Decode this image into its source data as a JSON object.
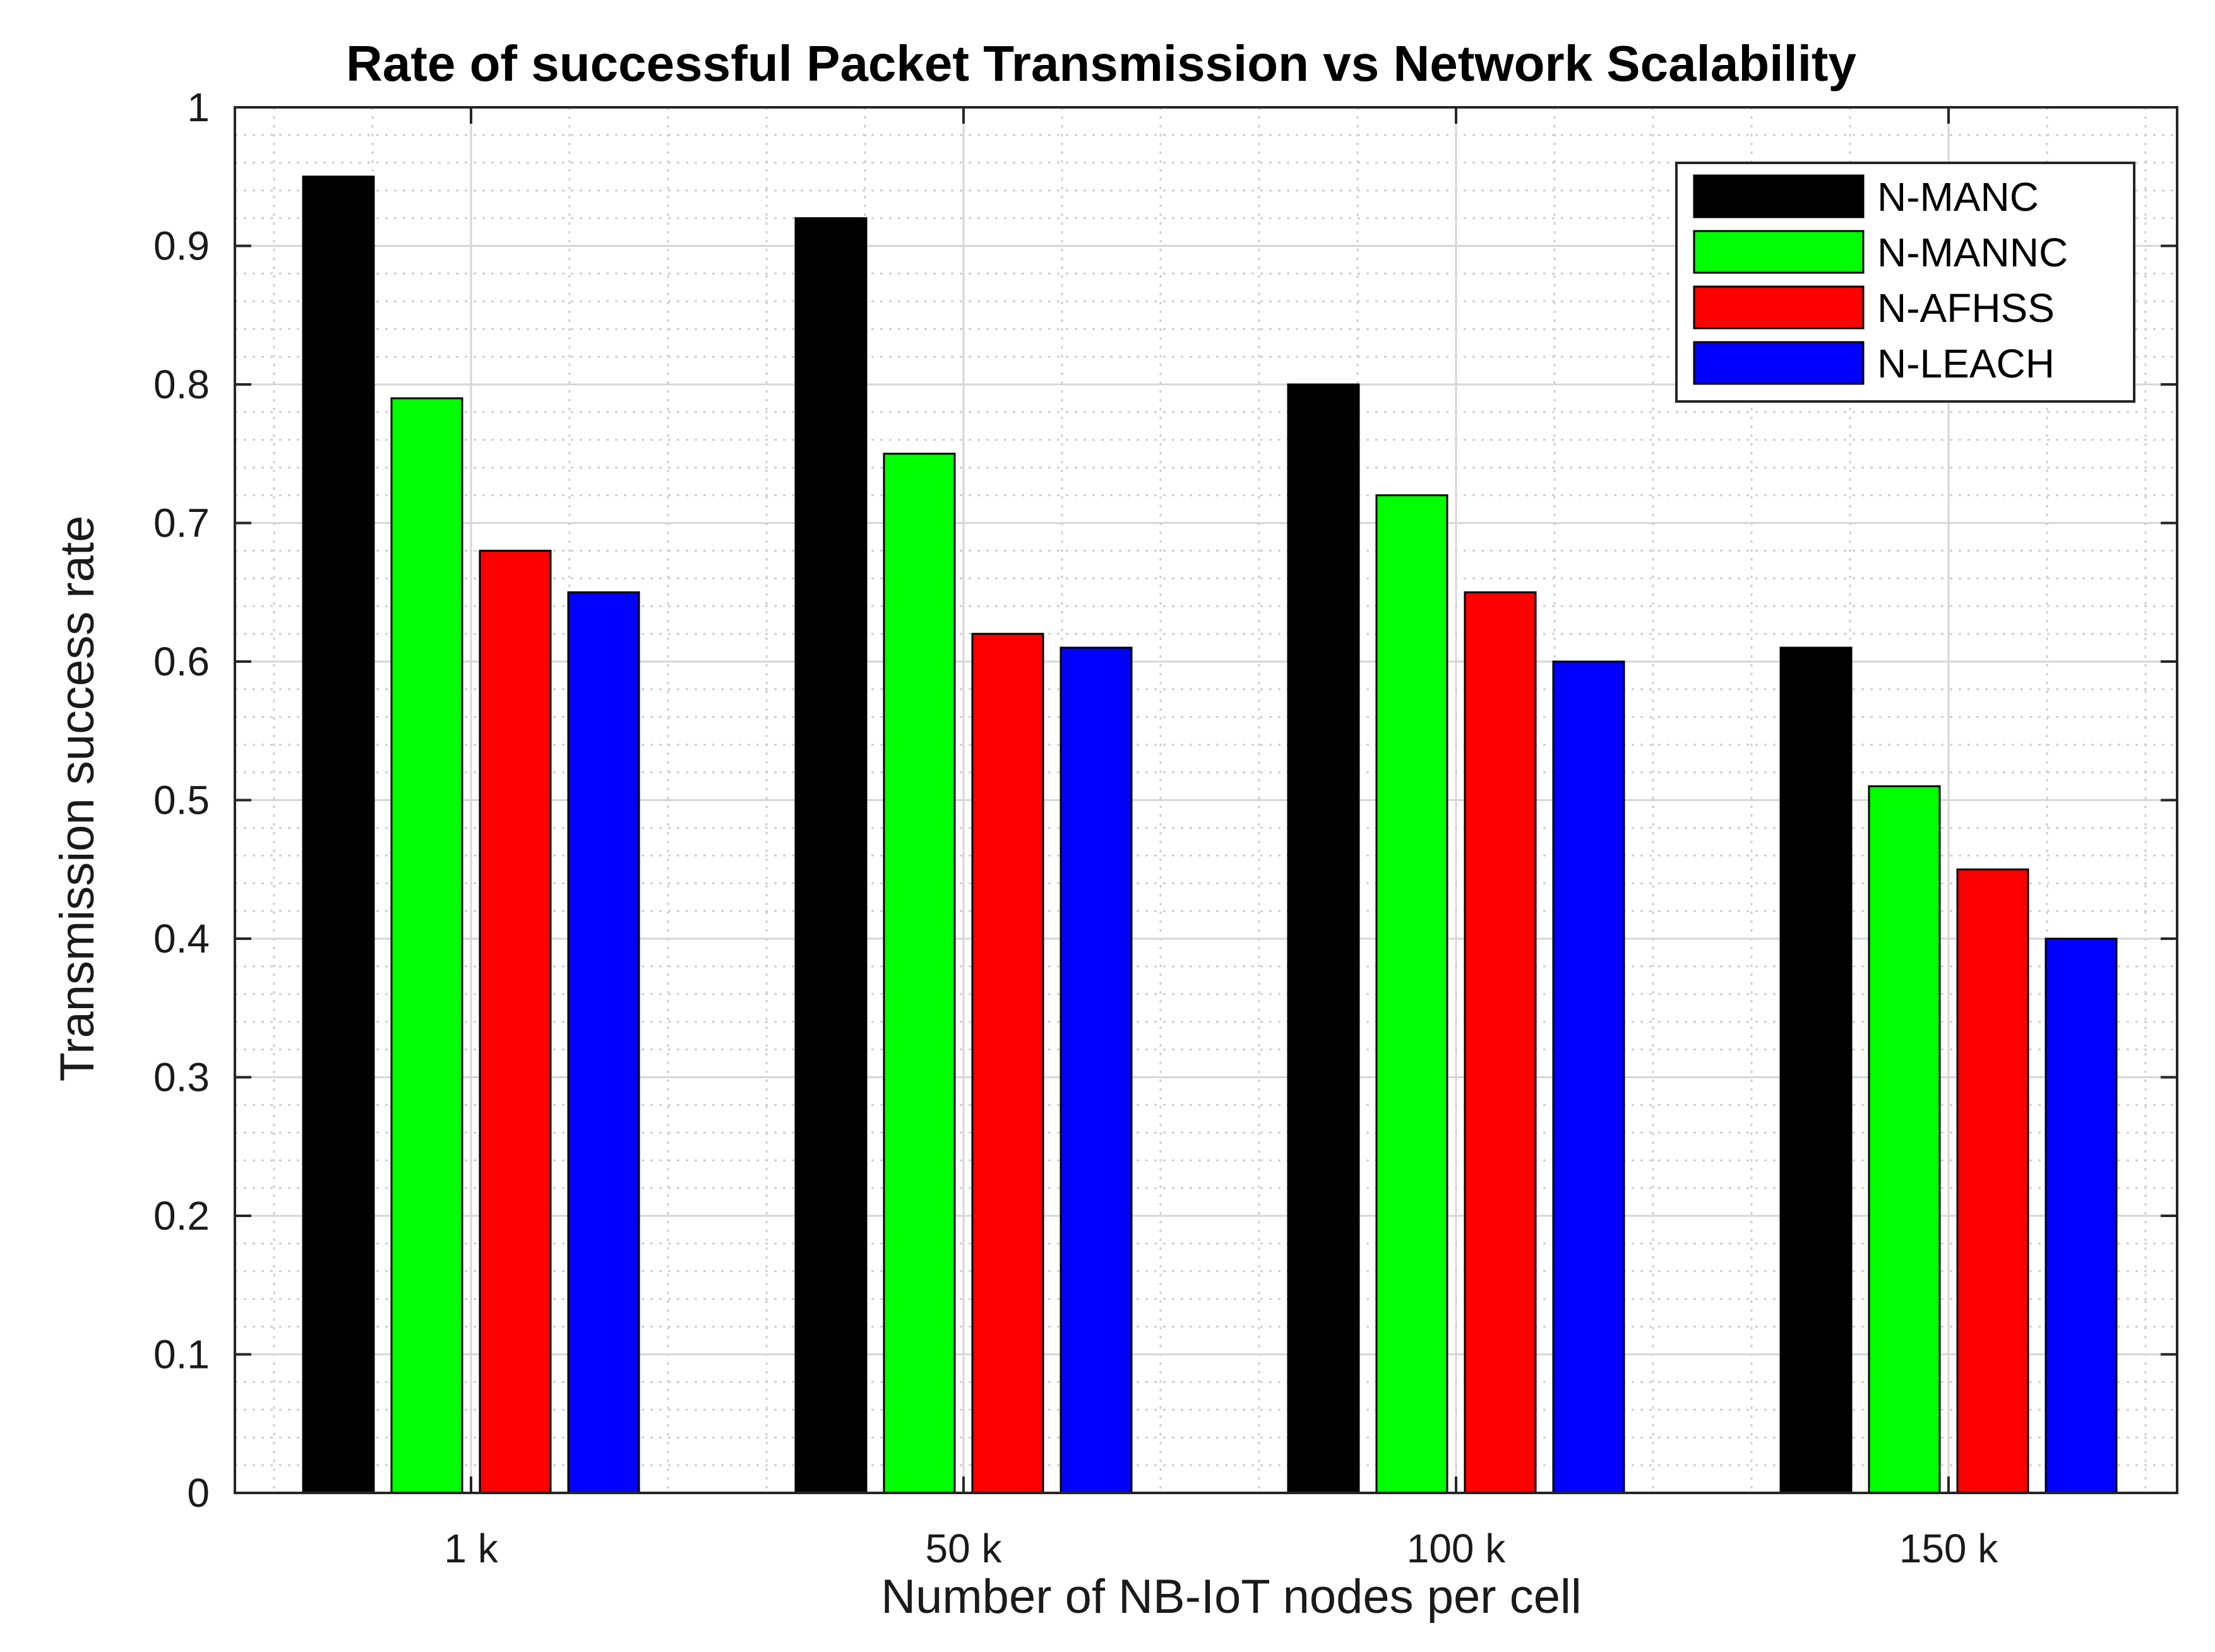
{
  "chart_data": {
    "type": "bar",
    "title": "Rate of successful Packet Transmission vs Network Scalability",
    "xlabel": "Number of NB-IoT nodes per cell",
    "ylabel": "Transmission success rate",
    "categories": [
      "1 k",
      "50 k",
      "100 k",
      "150 k"
    ],
    "ylim": [
      0,
      1
    ],
    "yticks": [
      0,
      0.1,
      0.2,
      0.3,
      0.4,
      0.5,
      0.6,
      0.7,
      0.8,
      0.9,
      1
    ],
    "ytick_labels": [
      "0",
      "0.1",
      "0.2",
      "0.3",
      "0.4",
      "0.5",
      "0.6",
      "0.7",
      "0.8",
      "0.9",
      "1"
    ],
    "grid": true,
    "minor_grid": true,
    "legend_position": "top-right",
    "series": [
      {
        "name": "N-MANC",
        "color": "#000000",
        "values": [
          0.95,
          0.92,
          0.8,
          0.61
        ]
      },
      {
        "name": "N-MANNC",
        "color": "#00ff00",
        "values": [
          0.79,
          0.75,
          0.72,
          0.51
        ]
      },
      {
        "name": "N-AFHSS",
        "color": "#ff0000",
        "values": [
          0.68,
          0.62,
          0.65,
          0.45
        ]
      },
      {
        "name": "N-LEACH",
        "color": "#0000ff",
        "values": [
          0.65,
          0.61,
          0.6,
          0.4
        ]
      }
    ]
  }
}
